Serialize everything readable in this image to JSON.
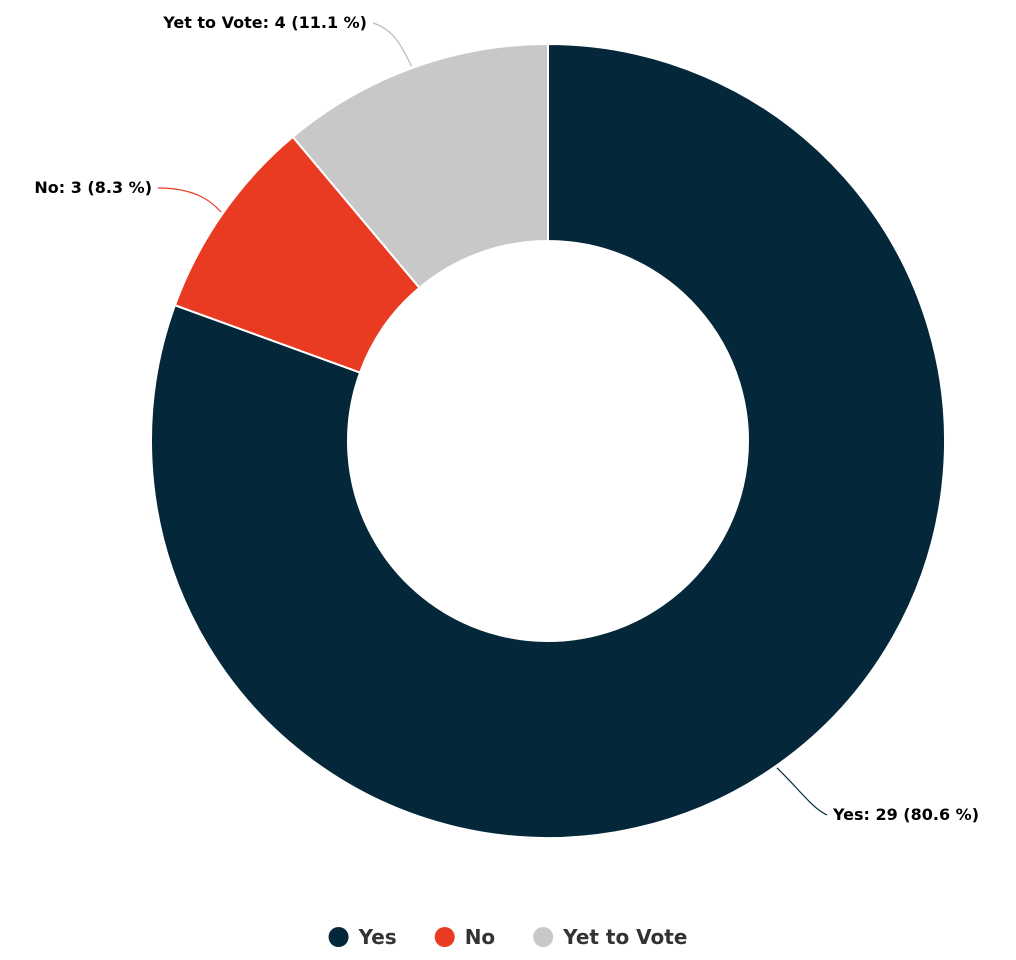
{
  "chart_data": {
    "type": "pie",
    "subtype": "donut",
    "title": "",
    "legend_position": "bottom",
    "slices": [
      {
        "label": "Yes",
        "value": 29,
        "percent": 80.6,
        "color": "#04273A",
        "data_label": "Yes: 29 (80.6 %)"
      },
      {
        "label": "No",
        "value": 3,
        "percent": 8.3,
        "color": "#E93A22",
        "data_label": "No: 3 (8.3 %)"
      },
      {
        "label": "Yet to Vote",
        "value": 4,
        "percent": 11.1,
        "color": "#C8C8C8",
        "data_label": "Yet to Vote: 4 (11.1 %)"
      }
    ]
  }
}
